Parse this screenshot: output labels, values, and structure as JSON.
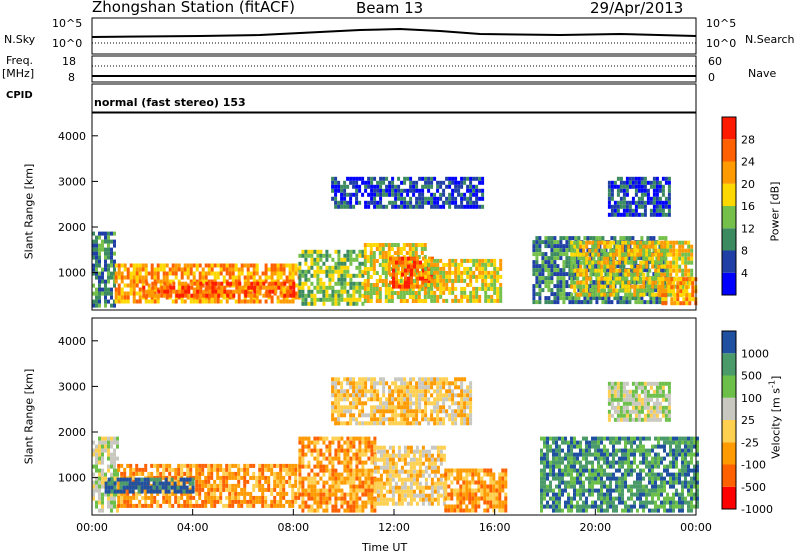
{
  "header": {
    "station": "Zhongshan Station (fitACF)",
    "beam": "Beam 13",
    "date": "29/Apr/2013"
  },
  "strip": {
    "nsky_label": "N.Sky",
    "nsky_ticks": [
      "10^5",
      "10^0"
    ],
    "nsearch_label": "N.Search",
    "nsearch_ticks": [
      "10^5",
      "10^0"
    ],
    "freq_label": "Freq.",
    "freq_unit": "[MHz]",
    "freq_ticks": [
      "18",
      "8"
    ],
    "nave_label": "Nave",
    "nave_ticks": [
      "60",
      "0"
    ],
    "cpid_label": "CPID",
    "mode": "normal (fast stereo) 153"
  },
  "colors": {
    "power": [
      "#0000ff",
      "#1f3fa6",
      "#3c8a60",
      "#74c04a",
      "#ffd800",
      "#ff9a00",
      "#ff6000",
      "#ff1a00"
    ],
    "velocity": [
      "#ff0000",
      "#ff6000",
      "#ff9a00",
      "#ffd050",
      "#c8c8c0",
      "#6cc04a",
      "#4a9a6a",
      "#2050a0"
    ],
    "background": "#ffffff"
  },
  "chart_data": [
    {
      "type": "heatmap",
      "title": "Power",
      "ylabel": "Slant Range [km]",
      "xlabel": "",
      "ylim": [
        180,
        4500
      ],
      "yticks": [
        "4000",
        "3000",
        "2000",
        "1000"
      ],
      "xticks": [
        "00:00",
        "04:00",
        "08:00",
        "12:00",
        "16:00",
        "20:00",
        "00:00"
      ],
      "colorbar": {
        "label": "Power [dB]",
        "ticks": [
          "28",
          "24",
          "20",
          "16",
          "12",
          "8",
          "4"
        ],
        "range": [
          0,
          32
        ]
      },
      "regions": [
        {
          "t": [
            0.0,
            0.9
          ],
          "r": [
            250,
            1900
          ],
          "level": 12
        },
        {
          "t": [
            0.9,
            8.2
          ],
          "r": [
            400,
            1200
          ],
          "level": 24
        },
        {
          "t": [
            2.0,
            8.0
          ],
          "r": [
            450,
            800
          ],
          "level": 28
        },
        {
          "t": [
            8.2,
            10.8
          ],
          "r": [
            350,
            1500
          ],
          "level": 14
        },
        {
          "t": [
            10.8,
            13.2
          ],
          "r": [
            400,
            1650
          ],
          "level": 20
        },
        {
          "t": [
            11.8,
            13.6
          ],
          "r": [
            700,
            1350
          ],
          "level": 28
        },
        {
          "t": [
            13.2,
            16.2
          ],
          "r": [
            350,
            1300
          ],
          "level": 18
        },
        {
          "t": [
            9.5,
            15.5
          ],
          "r": [
            2400,
            3100
          ],
          "level": 8
        },
        {
          "t": [
            17.5,
            22.8
          ],
          "r": [
            350,
            1800
          ],
          "level": 12
        },
        {
          "t": [
            19.0,
            23.8
          ],
          "r": [
            500,
            1700
          ],
          "level": 18
        },
        {
          "t": [
            22.5,
            24.0
          ],
          "r": [
            300,
            900
          ],
          "level": 24
        },
        {
          "t": [
            20.5,
            23.0
          ],
          "r": [
            2300,
            3100
          ],
          "level": 8
        }
      ]
    },
    {
      "type": "heatmap",
      "title": "Velocity",
      "ylabel": "Slant Range [km]",
      "xlabel": "Time UT",
      "ylim": [
        180,
        4500
      ],
      "yticks": [
        "4000",
        "3000",
        "2000",
        "1000"
      ],
      "xticks": [
        "00:00",
        "04:00",
        "08:00",
        "12:00",
        "16:00",
        "20:00",
        "00:00"
      ],
      "colorbar": {
        "label": "Velocity [m s",
        "label_sup": "-1",
        "label_end": "]",
        "ticks": [
          "1000",
          "500",
          "100",
          "25",
          "-25",
          "-100",
          "-500",
          "-1000"
        ]
      },
      "regions": [
        {
          "t": [
            0.0,
            1.0
          ],
          "r": [
            300,
            1900
          ],
          "level": 4
        },
        {
          "t": [
            1.0,
            8.2
          ],
          "r": [
            350,
            1300
          ],
          "level": 2
        },
        {
          "t": [
            0.5,
            4.0
          ],
          "r": [
            700,
            1000
          ],
          "level": 7
        },
        {
          "t": [
            8.2,
            11.2
          ],
          "r": [
            300,
            1900
          ],
          "level": 2
        },
        {
          "t": [
            11.2,
            14.0
          ],
          "r": [
            400,
            1700
          ],
          "level": 3
        },
        {
          "t": [
            14.0,
            16.5
          ],
          "r": [
            300,
            1200
          ],
          "level": 2
        },
        {
          "t": [
            9.5,
            15.0
          ],
          "r": [
            2200,
            3200
          ],
          "level": 3
        },
        {
          "t": [
            17.8,
            24.0
          ],
          "r": [
            300,
            1900
          ],
          "level": 6
        },
        {
          "t": [
            20.5,
            23.0
          ],
          "r": [
            2300,
            3100
          ],
          "level": 4
        }
      ]
    }
  ]
}
